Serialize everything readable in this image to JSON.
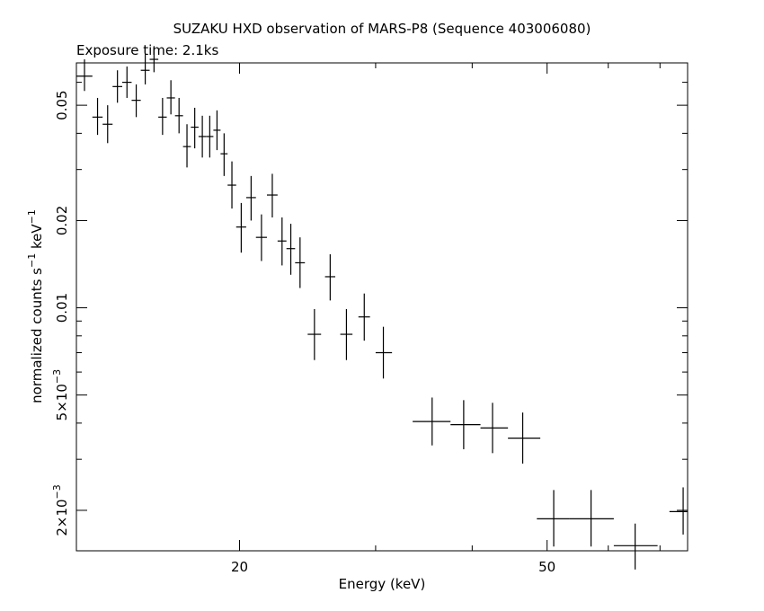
{
  "chart_data": {
    "type": "scatter",
    "title": "SUZAKU HXD observation of MARS-P8 (Sequence 403006080)",
    "subtitle": "Exposure time: 2.1ks",
    "xlabel": "Energy (keV)",
    "ylabel": "normalized counts s",
    "ylabel_sup1": "−1",
    "ylabel_mid": " keV",
    "ylabel_sup2": "−1",
    "x_scale": "log",
    "y_scale": "log",
    "xlim": [
      12.3,
      76
    ],
    "ylim": [
      0.00145,
      0.07
    ],
    "x_ticks": [
      {
        "value": 20,
        "label": "20"
      },
      {
        "value": 50,
        "label": "50"
      }
    ],
    "y_ticks": [
      {
        "value": 0.002,
        "mant": "2×10",
        "exp": "−3"
      },
      {
        "value": 0.005,
        "mant": "5×10",
        "exp": "−3"
      },
      {
        "value": 0.01,
        "mant": "0.01",
        "exp": ""
      },
      {
        "value": 0.02,
        "mant": "0.02",
        "exp": ""
      },
      {
        "value": 0.05,
        "mant": "0.05",
        "exp": ""
      }
    ],
    "points": [
      {
        "x": 12.6,
        "y": 0.063,
        "xlo": 12.3,
        "xhi": 12.9,
        "ylo": 0.056,
        "yhi": 0.072
      },
      {
        "x": 13.1,
        "y": 0.0455,
        "xlo": 12.9,
        "xhi": 13.3,
        "ylo": 0.0395,
        "yhi": 0.053
      },
      {
        "x": 13.5,
        "y": 0.043,
        "xlo": 13.3,
        "xhi": 13.7,
        "ylo": 0.037,
        "yhi": 0.05
      },
      {
        "x": 13.9,
        "y": 0.058,
        "xlo": 13.7,
        "xhi": 14.1,
        "ylo": 0.051,
        "yhi": 0.066
      },
      {
        "x": 14.3,
        "y": 0.06,
        "xlo": 14.1,
        "xhi": 14.5,
        "ylo": 0.053,
        "yhi": 0.068
      },
      {
        "x": 14.7,
        "y": 0.052,
        "xlo": 14.5,
        "xhi": 14.9,
        "ylo": 0.0455,
        "yhi": 0.059
      },
      {
        "x": 15.1,
        "y": 0.066,
        "xlo": 14.9,
        "xhi": 15.3,
        "ylo": 0.059,
        "yhi": 0.075
      },
      {
        "x": 15.5,
        "y": 0.072,
        "xlo": 15.3,
        "xhi": 15.7,
        "ylo": 0.065,
        "yhi": 0.08
      },
      {
        "x": 15.9,
        "y": 0.0455,
        "xlo": 15.7,
        "xhi": 16.1,
        "ylo": 0.0395,
        "yhi": 0.053
      },
      {
        "x": 16.3,
        "y": 0.053,
        "xlo": 16.1,
        "xhi": 16.5,
        "ylo": 0.0465,
        "yhi": 0.061
      },
      {
        "x": 16.7,
        "y": 0.046,
        "xlo": 16.5,
        "xhi": 16.9,
        "ylo": 0.04,
        "yhi": 0.053
      },
      {
        "x": 17.1,
        "y": 0.036,
        "xlo": 16.9,
        "xhi": 17.3,
        "ylo": 0.0305,
        "yhi": 0.043
      },
      {
        "x": 17.5,
        "y": 0.042,
        "xlo": 17.3,
        "xhi": 17.7,
        "ylo": 0.0355,
        "yhi": 0.049
      },
      {
        "x": 17.9,
        "y": 0.039,
        "xlo": 17.7,
        "xhi": 18.1,
        "ylo": 0.033,
        "yhi": 0.046
      },
      {
        "x": 18.3,
        "y": 0.039,
        "xlo": 18.1,
        "xhi": 18.5,
        "ylo": 0.033,
        "yhi": 0.046
      },
      {
        "x": 18.7,
        "y": 0.041,
        "xlo": 18.5,
        "xhi": 18.9,
        "ylo": 0.035,
        "yhi": 0.048
      },
      {
        "x": 19.1,
        "y": 0.034,
        "xlo": 18.9,
        "xhi": 19.3,
        "ylo": 0.0285,
        "yhi": 0.04
      },
      {
        "x": 19.55,
        "y": 0.0265,
        "xlo": 19.3,
        "xhi": 19.8,
        "ylo": 0.022,
        "yhi": 0.032
      },
      {
        "x": 20.1,
        "y": 0.019,
        "xlo": 19.8,
        "xhi": 20.4,
        "ylo": 0.0155,
        "yhi": 0.023
      },
      {
        "x": 20.7,
        "y": 0.024,
        "xlo": 20.4,
        "xhi": 21.0,
        "ylo": 0.02,
        "yhi": 0.0285
      },
      {
        "x": 21.35,
        "y": 0.0175,
        "xlo": 21.0,
        "xhi": 21.7,
        "ylo": 0.0145,
        "yhi": 0.021
      },
      {
        "x": 22.05,
        "y": 0.0245,
        "xlo": 21.7,
        "xhi": 22.4,
        "ylo": 0.0205,
        "yhi": 0.029
      },
      {
        "x": 22.7,
        "y": 0.017,
        "xlo": 22.4,
        "xhi": 23.0,
        "ylo": 0.014,
        "yhi": 0.0205
      },
      {
        "x": 23.3,
        "y": 0.016,
        "xlo": 23.0,
        "xhi": 23.6,
        "ylo": 0.013,
        "yhi": 0.0195
      },
      {
        "x": 23.95,
        "y": 0.0143,
        "xlo": 23.6,
        "xhi": 24.3,
        "ylo": 0.0117,
        "yhi": 0.0175
      },
      {
        "x": 25.0,
        "y": 0.0081,
        "xlo": 24.5,
        "xhi": 25.5,
        "ylo": 0.0066,
        "yhi": 0.0099
      },
      {
        "x": 26.2,
        "y": 0.0128,
        "xlo": 25.8,
        "xhi": 26.6,
        "ylo": 0.0106,
        "yhi": 0.0153
      },
      {
        "x": 27.5,
        "y": 0.0081,
        "xlo": 27.0,
        "xhi": 28.0,
        "ylo": 0.0066,
        "yhi": 0.0099
      },
      {
        "x": 29.0,
        "y": 0.0093,
        "xlo": 28.5,
        "xhi": 29.5,
        "ylo": 0.0077,
        "yhi": 0.0112
      },
      {
        "x": 30.7,
        "y": 0.007,
        "xlo": 30.0,
        "xhi": 31.5,
        "ylo": 0.0057,
        "yhi": 0.0086
      },
      {
        "x": 35.5,
        "y": 0.00405,
        "xlo": 33.5,
        "xhi": 37.5,
        "ylo": 0.00335,
        "yhi": 0.0049
      },
      {
        "x": 39.0,
        "y": 0.00395,
        "xlo": 37.5,
        "xhi": 41.0,
        "ylo": 0.00325,
        "yhi": 0.0048
      },
      {
        "x": 42.5,
        "y": 0.00385,
        "xlo": 41.0,
        "xhi": 44.5,
        "ylo": 0.00315,
        "yhi": 0.0047
      },
      {
        "x": 46.5,
        "y": 0.00355,
        "xlo": 44.5,
        "xhi": 49.0,
        "ylo": 0.0029,
        "yhi": 0.00435
      },
      {
        "x": 51.0,
        "y": 0.00187,
        "xlo": 48.5,
        "xhi": 53.5,
        "ylo": 0.0015,
        "yhi": 0.00235
      },
      {
        "x": 57.0,
        "y": 0.00187,
        "xlo": 53.5,
        "xhi": 61.0,
        "ylo": 0.0015,
        "yhi": 0.00235
      },
      {
        "x": 65.0,
        "y": 0.00151,
        "xlo": 61.0,
        "xhi": 69.5,
        "ylo": 0.00125,
        "yhi": 0.0018
      },
      {
        "x": 75.0,
        "y": 0.00198,
        "xlo": 72.0,
        "xhi": 76.0,
        "ylo": 0.00165,
        "yhi": 0.0024
      }
    ]
  }
}
